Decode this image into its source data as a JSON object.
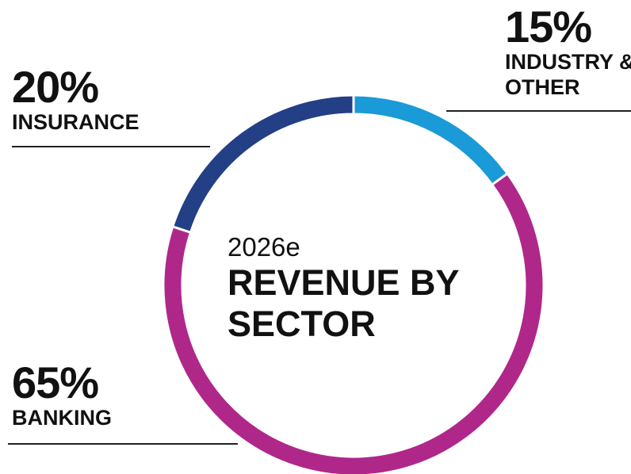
{
  "chart_data": {
    "type": "pie",
    "subtitle": "2026e",
    "title": "REVENUE BY SECTOR",
    "categories": [
      "INDUSTRY & OTHER",
      "BANKING",
      "INSURANCE"
    ],
    "values": [
      15,
      65,
      20
    ],
    "value_labels": [
      "15%",
      "65%",
      "20%"
    ],
    "colors": [
      "#1a9ad6",
      "#b0278a",
      "#233f85"
    ],
    "donut": true
  }
}
